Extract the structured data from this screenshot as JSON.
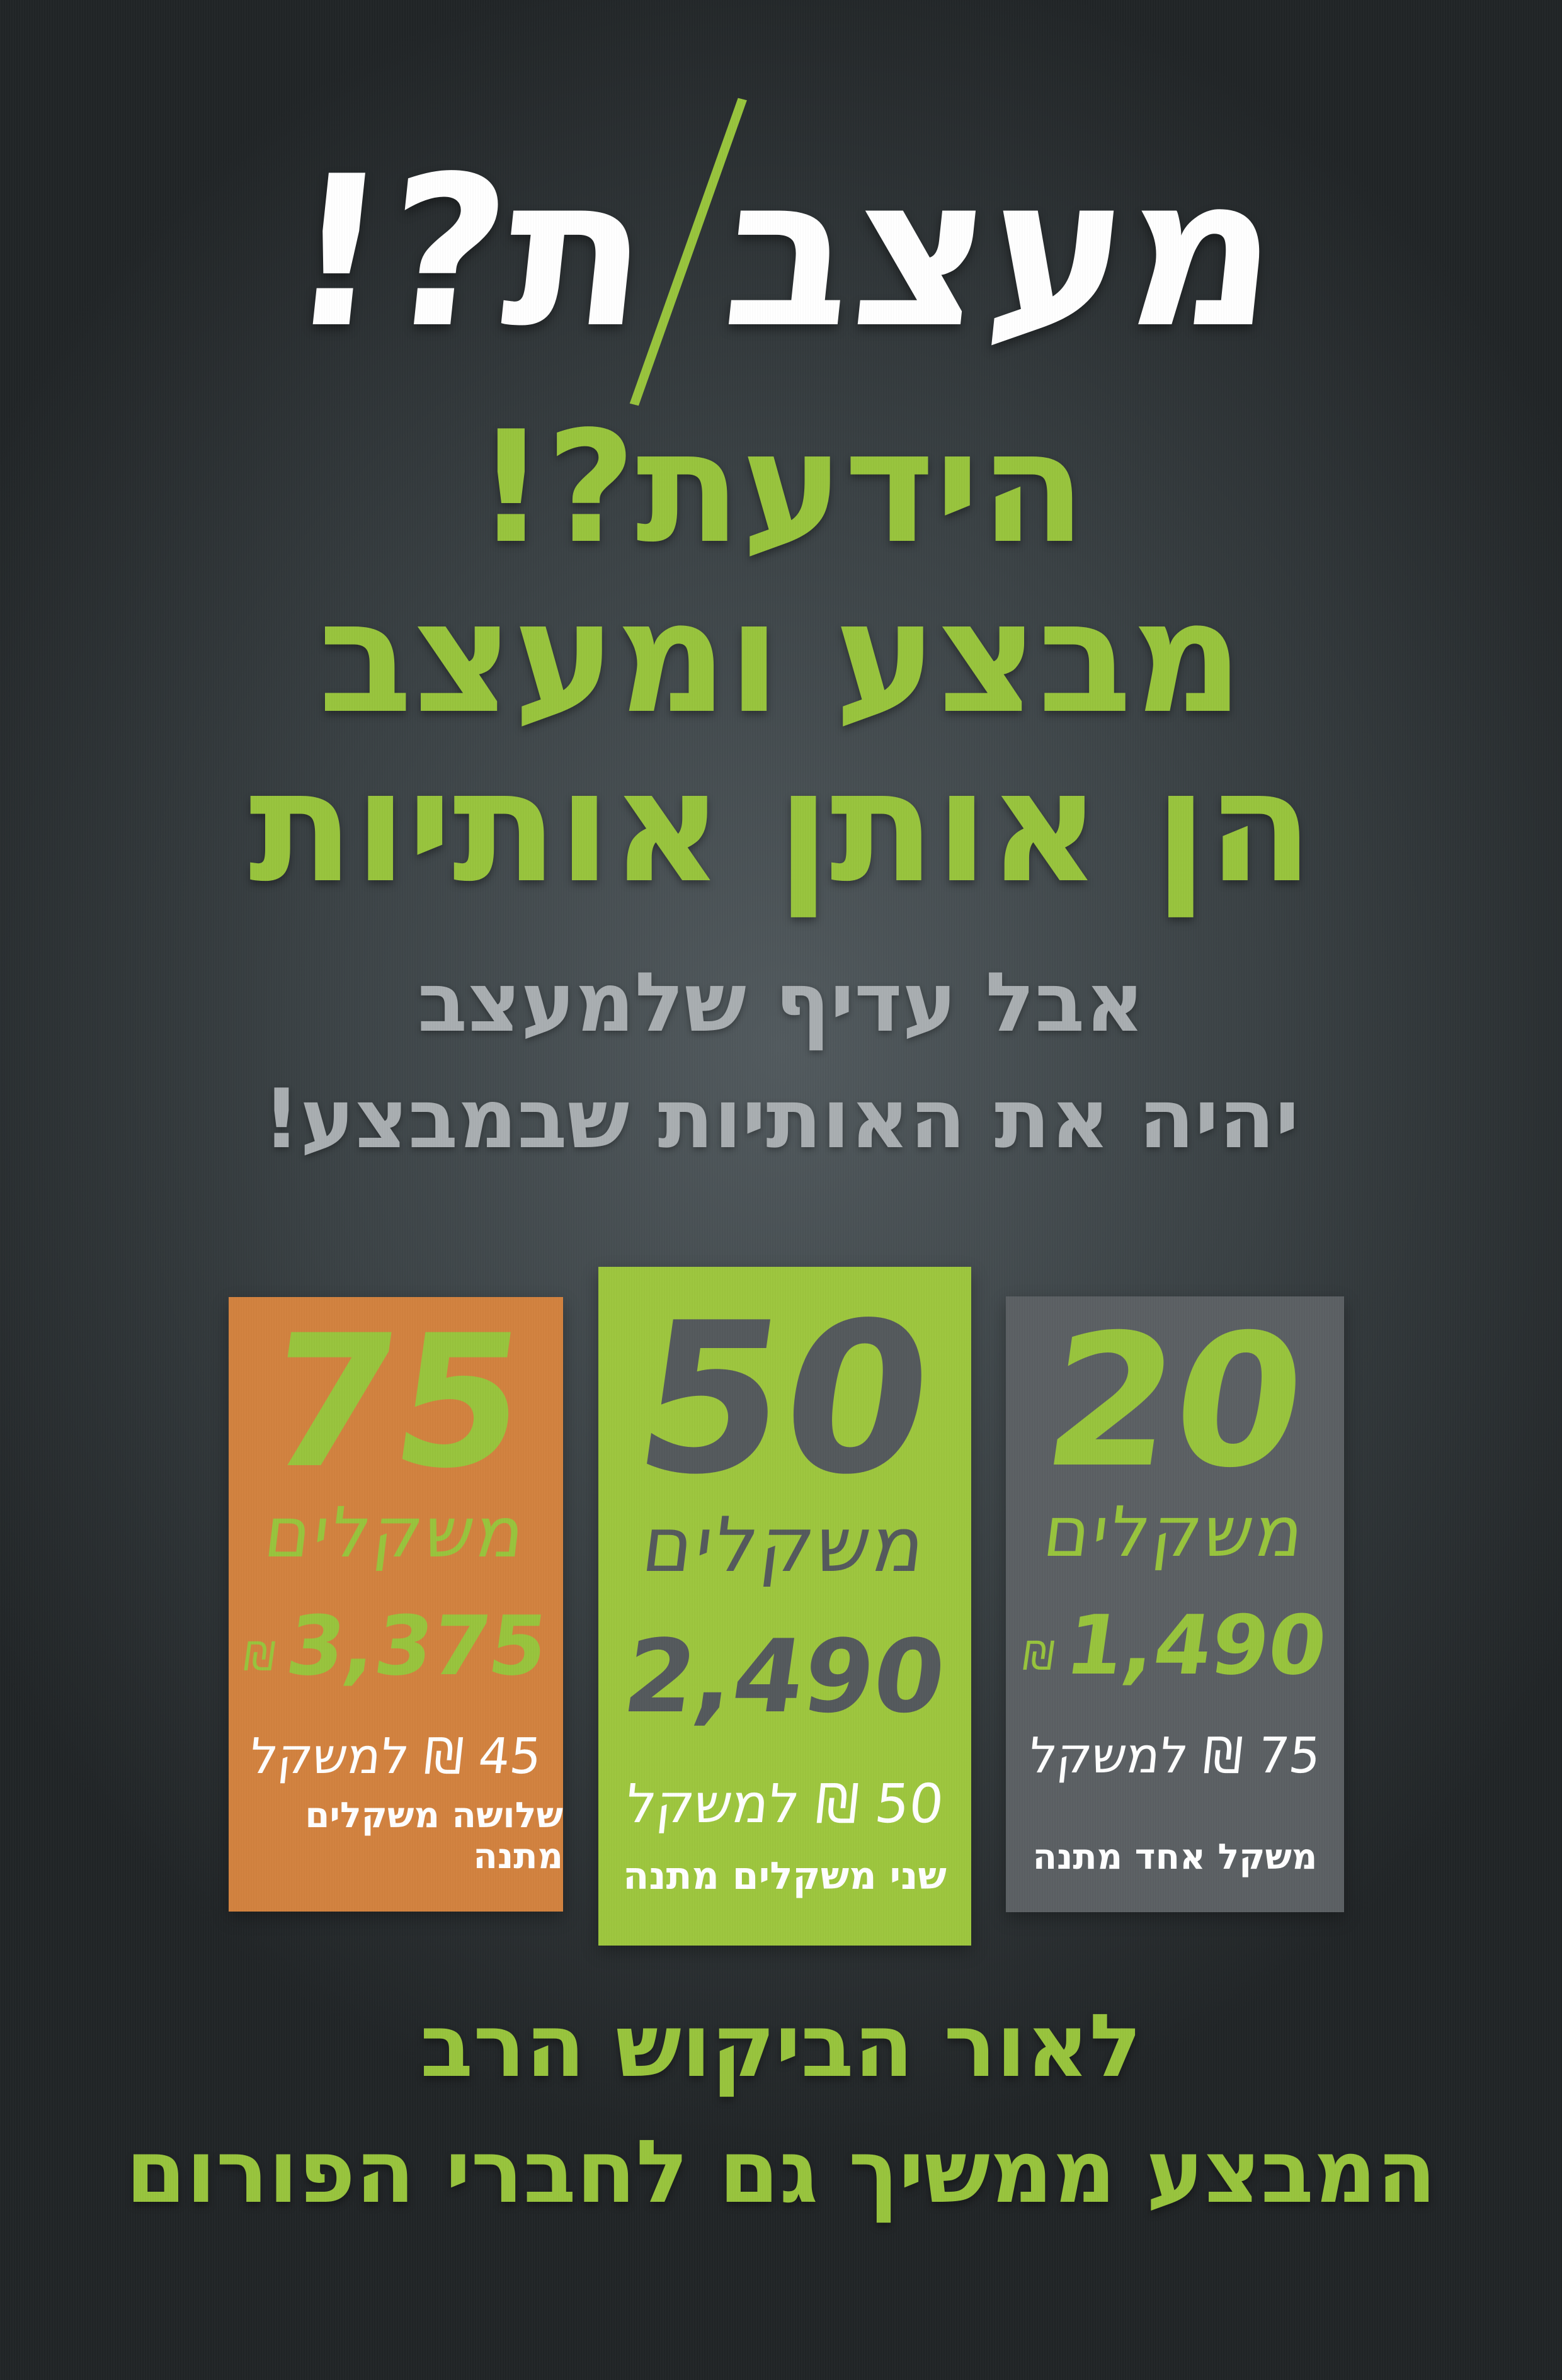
{
  "colors": {
    "green": "#98c43d",
    "orange": "#d2823f",
    "card-gray": "#5b6063",
    "number-gray": "#54595c",
    "text-light": "#a9aeb1",
    "white": "#ffffff",
    "bg-center": "#525a5e",
    "bg-mid": "#3a4144",
    "bg-edge": "#212527"
  },
  "title": {
    "word": "מעצב",
    "slash": "/",
    "suffix": "ת?!"
  },
  "headline": {
    "lines": [
      "הידעת?!",
      "מבצע ומעצב",
      "הן אותן אותיות"
    ]
  },
  "subtext": {
    "lines": [
      "אבל עדיף שלמעצב",
      "יהיה את האותיות שבמבצע!"
    ]
  },
  "cards": [
    {
      "name": "75-weights-package",
      "count": "75",
      "unit": "משקלים",
      "currency": "₪",
      "price": "3,375",
      "per_weight": "45 ₪ למשקל",
      "bonus": "שלושה משקלים מתנה",
      "bg": "#d2823f"
    },
    {
      "name": "50-weights-package",
      "count": "50",
      "unit": "משקלים",
      "currency": "",
      "price": "2,490",
      "per_weight": "50 ₪ למשקל",
      "bonus": "שני משקלים מתנה",
      "bg": "#9dc63e"
    },
    {
      "name": "20-weights-package",
      "count": "20",
      "unit": "משקלים",
      "currency": "₪",
      "price": "1,490",
      "per_weight": "75 ₪ למשקל",
      "bonus": "משקל אחד מתנה",
      "bg": "#5b6063"
    }
  ],
  "footer": {
    "lines": [
      "לאור הביקוש הרב",
      "המבצע ממשיך גם לחברי הפורום"
    ]
  }
}
